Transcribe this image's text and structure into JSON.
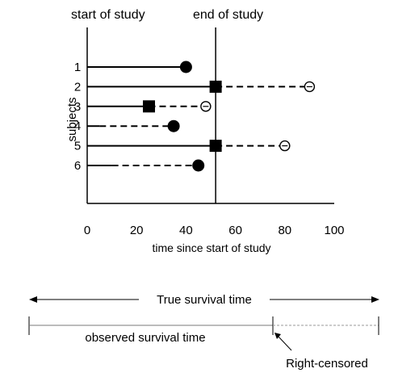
{
  "top_labels": {
    "start": "start of study",
    "end": "end of study"
  },
  "chart_data": {
    "type": "scatter",
    "xlabel": "time since start of study",
    "ylabel": "subjects",
    "xlim": [
      0,
      100
    ],
    "xticks": [
      0,
      20,
      40,
      60,
      80,
      100
    ],
    "study_end": 52,
    "subjects": [
      {
        "label": "1",
        "start": 0,
        "solid_to": 40,
        "dashed_to": null,
        "event": "death",
        "event_x": 40,
        "censor_x": null
      },
      {
        "label": "2",
        "start": 0,
        "solid_to": 52,
        "dashed_to": 90,
        "event": "withdrawal",
        "event_x": 52,
        "censor_x": 90
      },
      {
        "label": "3",
        "start": 0,
        "solid_to": 25,
        "dashed_to": 48,
        "event": "withdrawal",
        "event_x": 25,
        "censor_x": 48
      },
      {
        "label": "4",
        "start": 0,
        "solid_to": 5,
        "dashed_to": 35,
        "event": "death",
        "event_x": 35,
        "censor_x": null
      },
      {
        "label": "5",
        "start": 0,
        "solid_to": 52,
        "dashed_to": 80,
        "event": "withdrawal",
        "event_x": 52,
        "censor_x": 80
      },
      {
        "label": "6",
        "start": 0,
        "solid_to": 10,
        "dashed_to": 45,
        "event": "death",
        "event_x": 45,
        "censor_x": null
      }
    ]
  },
  "timeline": {
    "true_label": "True survival time",
    "observed_label": "observed survival time",
    "censored_label": "Right-censored"
  }
}
